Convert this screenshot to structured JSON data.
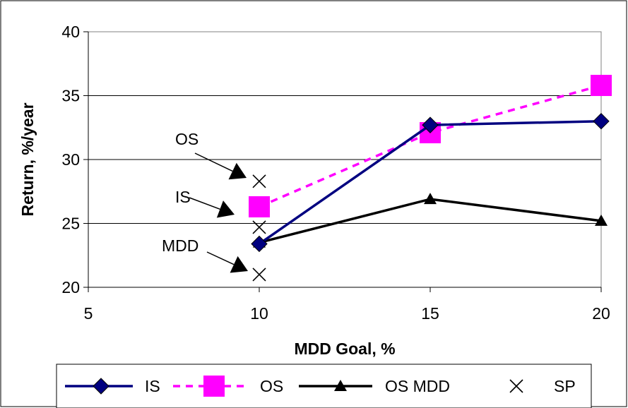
{
  "chart_data": {
    "type": "line",
    "title": "",
    "xlabel": "MDD Goal, %",
    "ylabel": "Return, %/year",
    "xlim": [
      5,
      20
    ],
    "ylim": [
      20,
      40
    ],
    "x_ticks": [
      5,
      10,
      15,
      20
    ],
    "y_ticks": [
      20,
      25,
      30,
      35,
      40
    ],
    "grid": "horizontal",
    "legend_position": "bottom",
    "series": [
      {
        "name": "IS",
        "x": [
          10,
          15,
          20
        ],
        "values": [
          23.4,
          32.7,
          33.0
        ],
        "color": "#000080",
        "line": "solid",
        "marker": "diamond"
      },
      {
        "name": "OS",
        "x": [
          10,
          15,
          20
        ],
        "values": [
          26.3,
          32.1,
          35.8
        ],
        "color": "#ff00ff",
        "line": "dashed",
        "marker": "square"
      },
      {
        "name": "OS MDD",
        "x": [
          10,
          15,
          20
        ],
        "values": [
          23.5,
          26.9,
          25.2
        ],
        "color": "#000000",
        "line": "solid",
        "marker": "triangle"
      },
      {
        "name": "SP",
        "x": [
          10,
          10,
          10
        ],
        "values": [
          28.3,
          24.7,
          21.0
        ],
        "color": "#000000",
        "line": "none",
        "marker": "x"
      }
    ],
    "annotations": [
      {
        "text": "OS",
        "x": 10,
        "y": 28.3
      },
      {
        "text": "IS",
        "x": 10,
        "y": 24.7
      },
      {
        "text": "MDD",
        "x": 10,
        "y": 21.0
      }
    ]
  }
}
